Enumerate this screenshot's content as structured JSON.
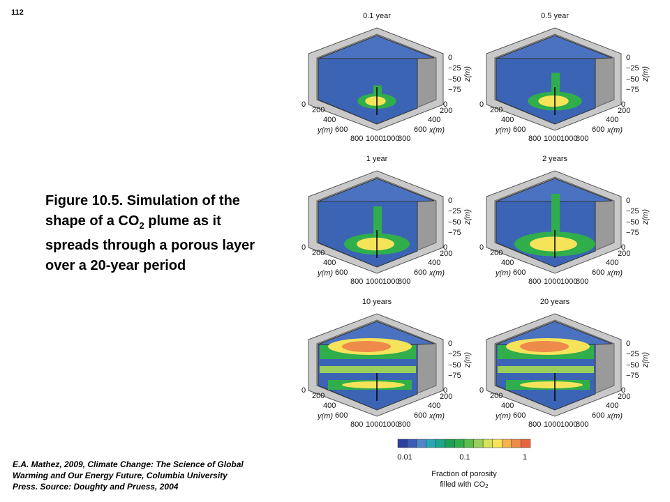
{
  "page_number": "112",
  "caption": {
    "before": "Figure 10.5.  Simulation of the shape of a CO",
    "sub": "2",
    "after": " plume as it spreads through a porous layer over a 20-year period"
  },
  "citation": "E.A. Mathez, 2009, Climate Change: The Science of Global Warming and Our Energy Future, Columbia University Press.  Source: Doughty and Pruess, 2004",
  "axes": {
    "z_ticks": [
      "0",
      "−25",
      "−50",
      "−75"
    ],
    "z_label": "z(m)",
    "y_ticks": [
      "0",
      "200",
      "400",
      "600",
      "800",
      "1000"
    ],
    "y_label": "y(m)",
    "x_ticks": [
      "0",
      "200",
      "400",
      "600",
      "800",
      "1000"
    ],
    "x_label": "x(m)"
  },
  "panels": [
    {
      "title": "0.1 year"
    },
    {
      "title": "0.5 year"
    },
    {
      "title": "1 year"
    },
    {
      "title": "2 years"
    },
    {
      "title": "10 years"
    },
    {
      "title": "20 years"
    }
  ],
  "colorbar": {
    "colors": [
      "#2b3f9e",
      "#3b5bb5",
      "#4f86c6",
      "#2aa7b4",
      "#1fa58a",
      "#1f9e55",
      "#2fae4b",
      "#5bbf4a",
      "#99cf5a",
      "#d4e35b",
      "#f5e35a",
      "#f3b34f",
      "#ee8a4a",
      "#e8643f"
    ],
    "tick_labels": [
      "0.01",
      "0.1",
      "1"
    ],
    "label_line1": "Fraction of porosity",
    "label_line2": "filled with CO",
    "label_sub": "2"
  }
}
